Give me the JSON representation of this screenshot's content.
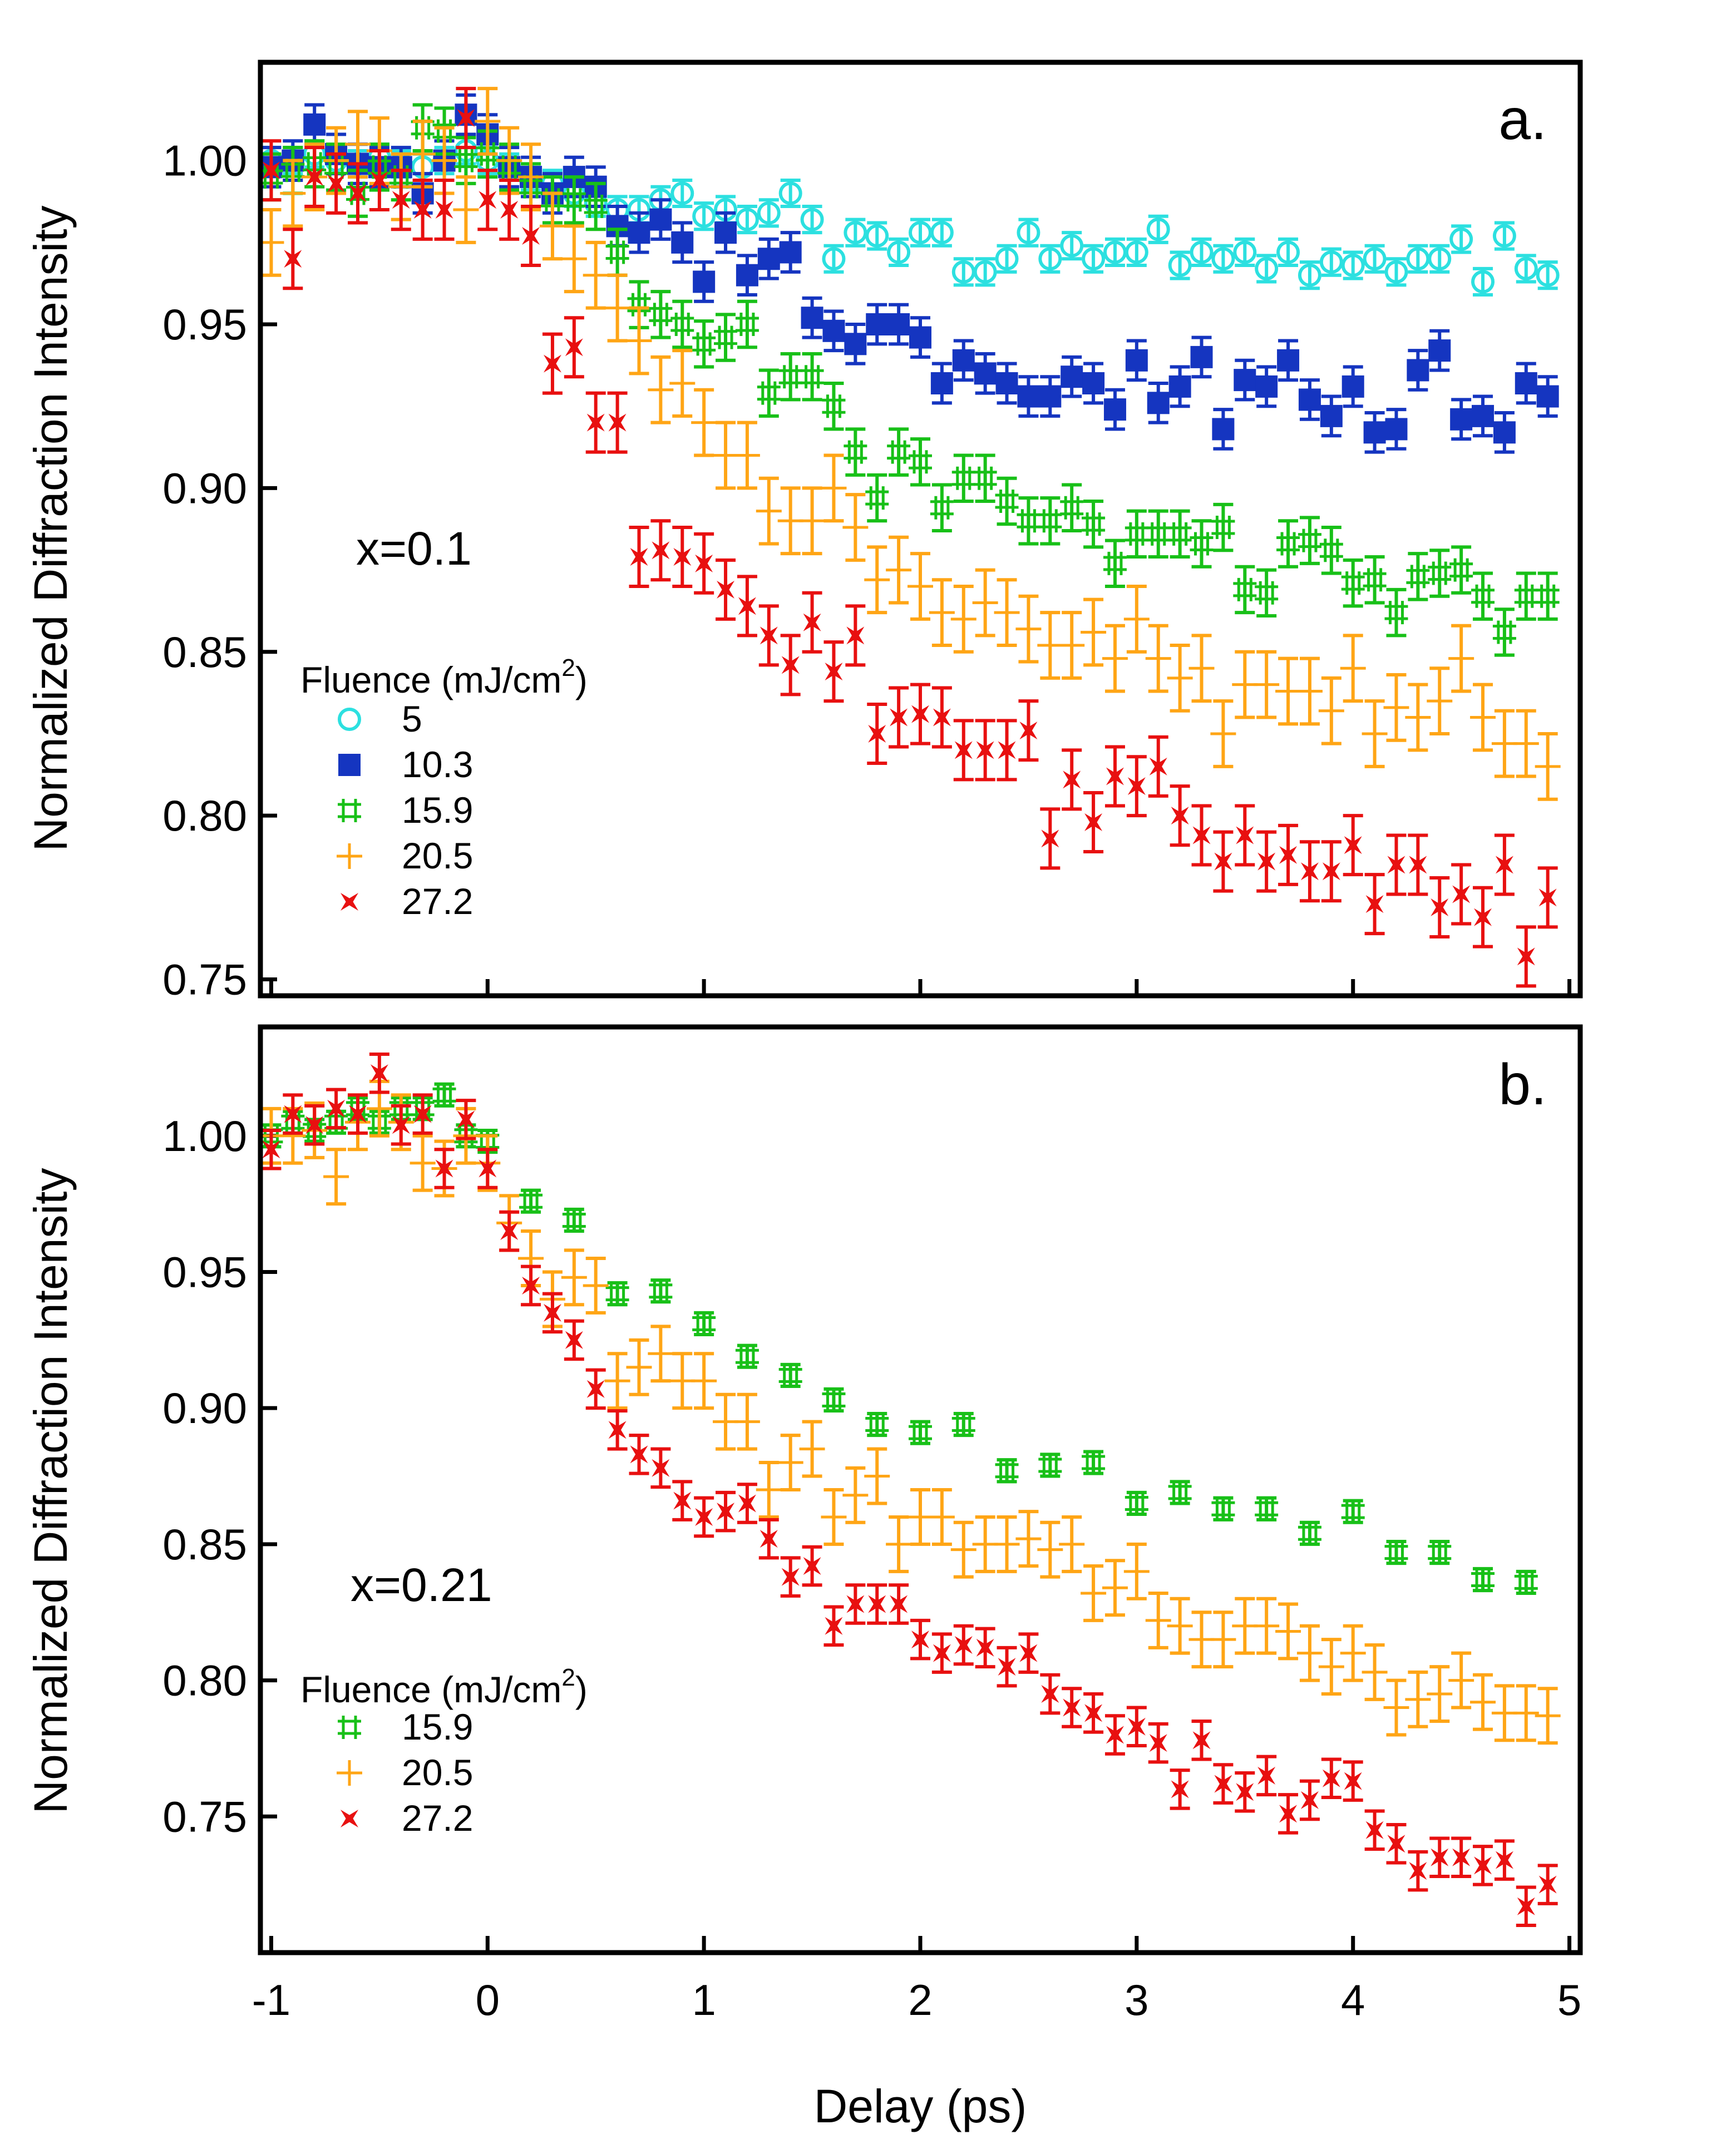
{
  "colors": {
    "cyan": "#2CE0E0",
    "blue": "#1535C0",
    "green": "#18C018",
    "orange": "#FFA515",
    "red": "#E81010"
  },
  "chart_data": [
    {
      "type": "scatter",
      "panel_label": "a.",
      "annotation": "x=0.1",
      "xlabel": "Delay (ps)",
      "ylabel": "Normalized Diffraction Intensity",
      "xlim": [
        -1.05,
        5.05
      ],
      "ylim": [
        0.745,
        1.03
      ],
      "yticks": [
        0.75,
        0.8,
        0.85,
        0.9,
        0.95,
        1.0
      ],
      "ytick_labels": [
        "0.75",
        "0.80",
        "0.85",
        "0.90",
        "0.95",
        "1.00"
      ],
      "xticks": [
        -1,
        0,
        1,
        2,
        3,
        4,
        5
      ],
      "xtick_labels": [
        "-1",
        "0",
        "1",
        "2",
        "3",
        "4",
        "5"
      ],
      "legend": {
        "title": "Fluence (mJ/cm",
        "title_sup": "2",
        "title_end": ")",
        "placement": "lower-left"
      },
      "series": [
        {
          "name": "5",
          "marker": "circle",
          "color": "#2CE0E0",
          "err": 0.004,
          "x": [
            -1.0,
            -0.9,
            -0.8,
            -0.7,
            -0.6,
            -0.5,
            -0.4,
            -0.3,
            -0.2,
            -0.1,
            0.0,
            0.1,
            0.2,
            0.3,
            0.4,
            0.5,
            0.6,
            0.7,
            0.8,
            0.9,
            1.0,
            1.1,
            1.2,
            1.3,
            1.4,
            1.5,
            1.6,
            1.7,
            1.8,
            1.9,
            2.0,
            2.1,
            2.2,
            2.3,
            2.4,
            2.5,
            2.6,
            2.7,
            2.8,
            2.9,
            3.0,
            3.1,
            3.2,
            3.3,
            3.4,
            3.5,
            3.6,
            3.7,
            3.8,
            3.9,
            4.0,
            4.1,
            4.2,
            4.3,
            4.4,
            4.5,
            4.6,
            4.7,
            4.8,
            4.9
          ],
          "y": [
            1.0,
            1.0,
            1.002,
            1.0,
            0.999,
            1.001,
            0.999,
            0.998,
            1.0,
            1.003,
            1.0,
            0.998,
            0.995,
            0.993,
            0.99,
            0.987,
            0.985,
            0.985,
            0.988,
            0.99,
            0.983,
            0.985,
            0.982,
            0.984,
            0.99,
            0.982,
            0.97,
            0.978,
            0.977,
            0.972,
            0.978,
            0.978,
            0.966,
            0.966,
            0.97,
            0.978,
            0.97,
            0.974,
            0.97,
            0.972,
            0.972,
            0.979,
            0.968,
            0.972,
            0.97,
            0.972,
            0.967,
            0.972,
            0.965,
            0.969,
            0.968,
            0.97,
            0.966,
            0.97,
            0.97,
            0.976,
            0.963,
            0.977,
            0.967,
            0.965
          ]
        },
        {
          "name": "10.3",
          "marker": "square",
          "color": "#1535C0",
          "err": 0.006,
          "x": [
            -1.0,
            -0.9,
            -0.8,
            -0.7,
            -0.6,
            -0.5,
            -0.4,
            -0.3,
            -0.2,
            -0.1,
            0.0,
            0.1,
            0.2,
            0.3,
            0.4,
            0.5,
            0.6,
            0.7,
            0.8,
            0.9,
            1.0,
            1.1,
            1.2,
            1.3,
            1.4,
            1.5,
            1.6,
            1.7,
            1.8,
            1.9,
            2.0,
            2.1,
            2.2,
            2.3,
            2.4,
            2.5,
            2.6,
            2.7,
            2.8,
            2.9,
            3.0,
            3.1,
            3.2,
            3.3,
            3.4,
            3.5,
            3.6,
            3.7,
            3.8,
            3.9,
            4.0,
            4.1,
            4.2,
            4.3,
            4.4,
            4.5,
            4.6,
            4.7,
            4.8,
            4.9
          ],
          "y": [
            0.998,
            1.0,
            1.011,
            1.002,
            0.999,
            0.998,
            0.998,
            0.99,
            1.0,
            1.014,
            1.008,
            0.998,
            0.995,
            0.99,
            0.995,
            0.992,
            0.98,
            0.978,
            0.982,
            0.975,
            0.963,
            0.978,
            0.965,
            0.97,
            0.972,
            0.952,
            0.948,
            0.944,
            0.95,
            0.95,
            0.946,
            0.932,
            0.939,
            0.935,
            0.932,
            0.928,
            0.928,
            0.934,
            0.932,
            0.924,
            0.939,
            0.926,
            0.931,
            0.94,
            0.918,
            0.933,
            0.931,
            0.939,
            0.927,
            0.922,
            0.931,
            0.917,
            0.918,
            0.936,
            0.942,
            0.921,
            0.922,
            0.917,
            0.932,
            0.928
          ]
        },
        {
          "name": "15.9",
          "marker": "hash",
          "color": "#18C018",
          "err": 0.007,
          "x": [
            -1.0,
            -0.9,
            -0.8,
            -0.7,
            -0.6,
            -0.5,
            -0.4,
            -0.3,
            -0.2,
            -0.1,
            0.0,
            0.1,
            0.2,
            0.3,
            0.4,
            0.5,
            0.6,
            0.7,
            0.8,
            0.9,
            1.0,
            1.1,
            1.2,
            1.3,
            1.4,
            1.5,
            1.6,
            1.7,
            1.8,
            1.9,
            2.0,
            2.1,
            2.2,
            2.3,
            2.4,
            2.5,
            2.6,
            2.7,
            2.8,
            2.9,
            3.0,
            3.1,
            3.2,
            3.3,
            3.4,
            3.5,
            3.6,
            3.7,
            3.8,
            3.9,
            4.0,
            4.1,
            4.2,
            4.3,
            4.4,
            4.5,
            4.6,
            4.7,
            4.8,
            4.9
          ],
          "y": [
            0.995,
            0.997,
            0.999,
            0.998,
            0.99,
            0.998,
            0.995,
            1.01,
            1.009,
            1.0,
            1.002,
            0.998,
            0.992,
            0.988,
            0.988,
            0.986,
            0.972,
            0.956,
            0.953,
            0.95,
            0.944,
            0.946,
            0.95,
            0.929,
            0.934,
            0.934,
            0.925,
            0.911,
            0.897,
            0.911,
            0.908,
            0.894,
            0.903,
            0.903,
            0.896,
            0.89,
            0.89,
            0.894,
            0.889,
            0.877,
            0.886,
            0.886,
            0.886,
            0.883,
            0.888,
            0.869,
            0.868,
            0.883,
            0.884,
            0.881,
            0.871,
            0.872,
            0.862,
            0.873,
            0.874,
            0.875,
            0.867,
            0.856,
            0.867,
            0.867
          ]
        },
        {
          "name": "20.5",
          "marker": "plus",
          "color": "#FFA515",
          "err": 0.01,
          "x": [
            -1.0,
            -0.9,
            -0.8,
            -0.7,
            -0.6,
            -0.5,
            -0.4,
            -0.3,
            -0.2,
            -0.1,
            0.0,
            0.1,
            0.2,
            0.3,
            0.4,
            0.5,
            0.6,
            0.7,
            0.8,
            0.9,
            1.0,
            1.1,
            1.2,
            1.3,
            1.4,
            1.5,
            1.6,
            1.7,
            1.8,
            1.9,
            2.0,
            2.1,
            2.2,
            2.3,
            2.4,
            2.5,
            2.6,
            2.7,
            2.8,
            2.9,
            3.0,
            3.1,
            3.2,
            3.3,
            3.4,
            3.5,
            3.6,
            3.7,
            3.8,
            3.9,
            4.0,
            4.1,
            4.2,
            4.3,
            4.4,
            4.5,
            4.6,
            4.7,
            4.8,
            4.9
          ],
          "y": [
            0.975,
            0.99,
            0.995,
            1.0,
            1.005,
            1.003,
            0.992,
            1.002,
            1.0,
            0.985,
            1.012,
            1.0,
            0.995,
            0.98,
            0.97,
            0.965,
            0.955,
            0.945,
            0.93,
            0.932,
            0.92,
            0.91,
            0.91,
            0.893,
            0.89,
            0.89,
            0.9,
            0.888,
            0.872,
            0.875,
            0.87,
            0.862,
            0.86,
            0.865,
            0.862,
            0.857,
            0.852,
            0.852,
            0.856,
            0.848,
            0.86,
            0.848,
            0.842,
            0.845,
            0.825,
            0.84,
            0.84,
            0.838,
            0.838,
            0.832,
            0.845,
            0.825,
            0.833,
            0.83,
            0.835,
            0.848,
            0.83,
            0.822,
            0.822,
            0.815
          ]
        },
        {
          "name": "27.2",
          "marker": "star",
          "color": "#E81010",
          "err": 0.009,
          "x": [
            -1.0,
            -0.9,
            -0.8,
            -0.7,
            -0.6,
            -0.5,
            -0.4,
            -0.3,
            -0.2,
            -0.1,
            0.0,
            0.1,
            0.2,
            0.3,
            0.4,
            0.5,
            0.6,
            0.7,
            0.8,
            0.9,
            1.0,
            1.1,
            1.2,
            1.3,
            1.4,
            1.5,
            1.6,
            1.7,
            1.8,
            1.9,
            2.0,
            2.1,
            2.2,
            2.3,
            2.4,
            2.5,
            2.6,
            2.7,
            2.8,
            2.9,
            3.0,
            3.1,
            3.2,
            3.3,
            3.4,
            3.5,
            3.6,
            3.7,
            3.8,
            3.9,
            4.0,
            4.1,
            4.2,
            4.3,
            4.4,
            4.5,
            4.6,
            4.7,
            4.8,
            4.9
          ],
          "y": [
            0.997,
            0.97,
            0.995,
            0.993,
            0.99,
            0.994,
            0.988,
            0.985,
            0.985,
            1.013,
            0.988,
            0.985,
            0.977,
            0.938,
            0.943,
            0.92,
            0.92,
            0.879,
            0.881,
            0.879,
            0.877,
            0.869,
            0.864,
            0.855,
            0.846,
            0.859,
            0.844,
            0.855,
            0.825,
            0.83,
            0.831,
            0.83,
            0.82,
            0.82,
            0.82,
            0.826,
            0.793,
            0.811,
            0.798,
            0.812,
            0.809,
            0.815,
            0.8,
            0.794,
            0.786,
            0.794,
            0.786,
            0.788,
            0.783,
            0.783,
            0.791,
            0.773,
            0.785,
            0.785,
            0.772,
            0.776,
            0.769,
            0.785,
            0.757,
            0.775
          ]
        }
      ]
    },
    {
      "type": "scatter",
      "panel_label": "b.",
      "annotation": "x=0.21",
      "xlabel": "Delay (ps)",
      "ylabel": "Normalized Diffraction Intensity",
      "xlim": [
        -1.05,
        5.05
      ],
      "ylim": [
        0.7,
        1.04
      ],
      "yticks": [
        0.75,
        0.8,
        0.85,
        0.9,
        0.95,
        1.0
      ],
      "ytick_labels": [
        "0.75",
        "0.80",
        "0.85",
        "0.90",
        "0.95",
        "1.00"
      ],
      "xticks": [
        -1,
        0,
        1,
        2,
        3,
        4,
        5
      ],
      "xtick_labels": [
        "-1",
        "0",
        "1",
        "2",
        "3",
        "4",
        "5"
      ],
      "legend": {
        "title": "Fluence (mJ/cm",
        "title_sup": "2",
        "title_end": ")",
        "placement": "lower-left"
      },
      "series": [
        {
          "name": "15.9",
          "marker": "hash",
          "color": "#18C018",
          "err": 0.004,
          "x": [
            -1.0,
            -0.9,
            -0.8,
            -0.7,
            -0.6,
            -0.5,
            -0.4,
            -0.3,
            -0.2,
            -0.1,
            0.0,
            0.2,
            0.4,
            0.6,
            0.8,
            1.0,
            1.2,
            1.4,
            1.6,
            1.8,
            2.0,
            2.2,
            2.4,
            2.6,
            2.8,
            3.0,
            3.2,
            3.4,
            3.6,
            3.8,
            4.0,
            4.2,
            4.4,
            4.6,
            4.8
          ],
          "y": [
            1.0,
            1.005,
            1.002,
            1.005,
            1.01,
            1.005,
            1.01,
            1.01,
            1.015,
            1.0,
            0.998,
            0.976,
            0.969,
            0.942,
            0.943,
            0.931,
            0.919,
            0.912,
            0.903,
            0.894,
            0.891,
            0.894,
            0.877,
            0.879,
            0.88,
            0.865,
            0.869,
            0.863,
            0.863,
            0.854,
            0.862,
            0.847,
            0.847,
            0.837,
            0.836
          ]
        },
        {
          "name": "20.5",
          "marker": "plus",
          "color": "#FFA515",
          "err": 0.01,
          "x": [
            -1.0,
            -0.9,
            -0.8,
            -0.7,
            -0.6,
            -0.5,
            -0.4,
            -0.3,
            -0.2,
            -0.1,
            0.0,
            0.1,
            0.2,
            0.3,
            0.4,
            0.5,
            0.6,
            0.7,
            0.8,
            0.9,
            1.0,
            1.1,
            1.2,
            1.3,
            1.4,
            1.5,
            1.6,
            1.7,
            1.8,
            1.9,
            2.0,
            2.1,
            2.2,
            2.3,
            2.4,
            2.5,
            2.6,
            2.7,
            2.8,
            2.9,
            3.0,
            3.1,
            3.2,
            3.3,
            3.4,
            3.5,
            3.6,
            3.7,
            3.8,
            3.9,
            4.0,
            4.1,
            4.2,
            4.3,
            4.4,
            4.5,
            4.6,
            4.7,
            4.8,
            4.9
          ],
          "y": [
            1.0,
            1.0,
            1.002,
            0.985,
            1.005,
            1.01,
            1.005,
            0.99,
            0.988,
            1.0,
            0.99,
            0.968,
            0.955,
            0.94,
            0.948,
            0.945,
            0.91,
            0.915,
            0.92,
            0.91,
            0.91,
            0.895,
            0.895,
            0.87,
            0.88,
            0.885,
            0.86,
            0.868,
            0.875,
            0.85,
            0.86,
            0.86,
            0.848,
            0.85,
            0.85,
            0.852,
            0.848,
            0.85,
            0.832,
            0.834,
            0.84,
            0.822,
            0.82,
            0.815,
            0.815,
            0.82,
            0.82,
            0.818,
            0.81,
            0.805,
            0.81,
            0.803,
            0.79,
            0.793,
            0.795,
            0.8,
            0.792,
            0.788,
            0.788,
            0.787
          ]
        },
        {
          "name": "27.2",
          "marker": "star",
          "color": "#E81010",
          "err": 0.007,
          "x": [
            -1.0,
            -0.9,
            -0.8,
            -0.7,
            -0.6,
            -0.5,
            -0.4,
            -0.3,
            -0.2,
            -0.1,
            0.0,
            0.1,
            0.2,
            0.3,
            0.4,
            0.5,
            0.6,
            0.7,
            0.8,
            0.9,
            1.0,
            1.1,
            1.2,
            1.3,
            1.4,
            1.5,
            1.6,
            1.7,
            1.8,
            1.9,
            2.0,
            2.1,
            2.2,
            2.3,
            2.4,
            2.5,
            2.6,
            2.7,
            2.8,
            2.9,
            3.0,
            3.1,
            3.2,
            3.3,
            3.4,
            3.5,
            3.6,
            3.7,
            3.8,
            3.9,
            4.0,
            4.1,
            4.2,
            4.3,
            4.4,
            4.5,
            4.6,
            4.7,
            4.8,
            4.9
          ],
          "y": [
            0.995,
            1.008,
            1.004,
            1.01,
            1.008,
            1.023,
            1.004,
            1.008,
            0.988,
            1.006,
            0.988,
            0.965,
            0.945,
            0.935,
            0.925,
            0.907,
            0.892,
            0.883,
            0.878,
            0.866,
            0.86,
            0.862,
            0.865,
            0.852,
            0.838,
            0.842,
            0.82,
            0.828,
            0.828,
            0.828,
            0.815,
            0.81,
            0.813,
            0.812,
            0.805,
            0.81,
            0.795,
            0.79,
            0.788,
            0.78,
            0.783,
            0.777,
            0.76,
            0.778,
            0.762,
            0.759,
            0.765,
            0.751,
            0.756,
            0.764,
            0.763,
            0.745,
            0.74,
            0.73,
            0.735,
            0.735,
            0.732,
            0.734,
            0.717,
            0.725
          ]
        }
      ]
    }
  ]
}
